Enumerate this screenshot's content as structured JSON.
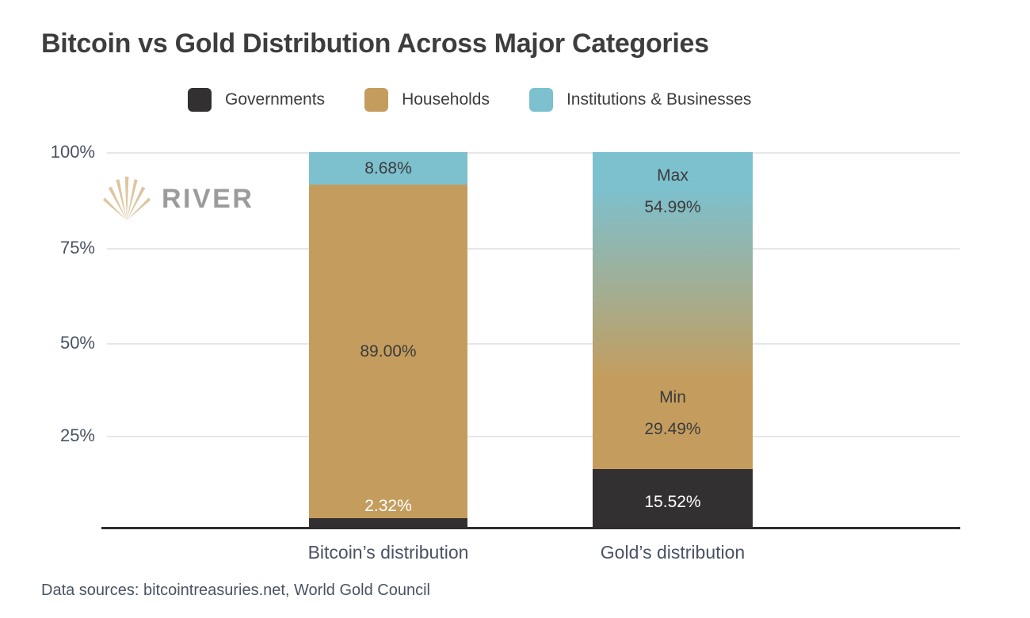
{
  "title": "Bitcoin vs Gold Distribution Across Major Categories",
  "watermark": {
    "brand": "RIVER"
  },
  "footer": {
    "text": "Data sources: bitcointreasuries.net, World Gold Council"
  },
  "chart_data": {
    "type": "bar",
    "subtype": "stacked-percent",
    "title": "Bitcoin vs Gold Distribution Across Major Categories",
    "categories": [
      "Bitcoin’s distribution",
      "Gold’s distribution"
    ],
    "series": [
      {
        "name": "Governments",
        "color": "#333031",
        "values": [
          2.32,
          15.52
        ]
      },
      {
        "name": "Households",
        "color": "#c49d5e",
        "values": [
          89.0,
          29.49
        ]
      },
      {
        "name": "Institutions & Businesses",
        "color": "#7dc0ce",
        "values": [
          8.68,
          54.99
        ]
      }
    ],
    "value_labels": {
      "bitcoin": {
        "institutions": "8.68%",
        "households": "89.00%",
        "governments": "2.32%"
      },
      "gold": {
        "institutions_prefix": "Max",
        "institutions": "54.99%",
        "households_prefix": "Min",
        "households": "29.49%",
        "governments": "15.52%"
      }
    },
    "yticks": [
      "100%",
      "75%",
      "50%",
      "25%"
    ],
    "ylim": [
      0,
      100
    ],
    "grid": true,
    "legend_position": "top",
    "style_note": "Gold bar blends Households-to-Institutions boundary with a teal-to-gold gradient to indicate the Min/Max range"
  }
}
